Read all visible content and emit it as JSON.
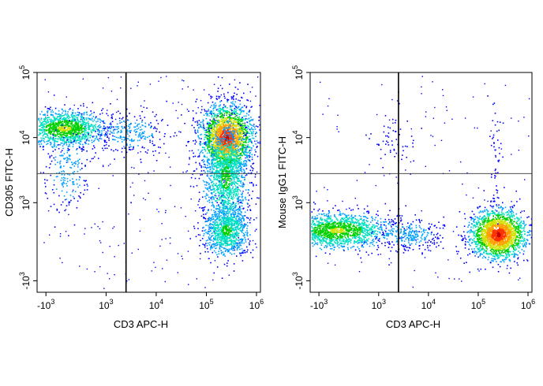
{
  "chart_data": [
    {
      "type": "scatter",
      "plot_style": "density pseudocolor flow cytometry dot plot",
      "xlabel": "CD3 APC-H",
      "ylabel": "CD305 FITC-H",
      "x_ticks": [
        {
          "base": "-10",
          "exp": "3",
          "value": -1000
        },
        {
          "base": "10",
          "exp": "3",
          "value": 1000
        },
        {
          "base": "10",
          "exp": "4",
          "value": 10000
        },
        {
          "base": "10",
          "exp": "5",
          "value": 100000
        },
        {
          "base": "10",
          "exp": "6",
          "value": 1000000
        }
      ],
      "y_ticks": [
        {
          "base": "-10",
          "exp": "3",
          "value": -1000
        },
        {
          "base": "10",
          "exp": "3",
          "value": 1000
        },
        {
          "base": "10",
          "exp": "4",
          "value": 10000
        },
        {
          "base": "10",
          "exp": "5",
          "value": 100000
        }
      ],
      "scale": "biexponential (logicle)",
      "gates": {
        "vertical_x": 2500,
        "horizontal_y": 2800
      },
      "populations": [
        {
          "x_center": -400,
          "y_center": 14000,
          "relative_density": "medium",
          "extent": "x from -1000 to 4000, y from 5000 to 25000"
        },
        {
          "x_center": 250000,
          "y_center": 10000,
          "relative_density": "high",
          "extent": "x from 60000 to 500000, y from 4000 to 20000"
        },
        {
          "x_center": 250000,
          "y_center": 300,
          "relative_density": "medium",
          "extent": "x from 80000 to 450000, y from -1000 to 4000"
        }
      ]
    },
    {
      "type": "scatter",
      "plot_style": "density pseudocolor flow cytometry dot plot",
      "xlabel": "CD3 APC-H",
      "ylabel": "Mouse IgG1 FITC-H",
      "x_ticks": [
        {
          "base": "-10",
          "exp": "3",
          "value": -1000
        },
        {
          "base": "10",
          "exp": "3",
          "value": 1000
        },
        {
          "base": "10",
          "exp": "4",
          "value": 10000
        },
        {
          "base": "10",
          "exp": "5",
          "value": 100000
        },
        {
          "base": "10",
          "exp": "6",
          "value": 1000000
        }
      ],
      "y_ticks": [
        {
          "base": "-10",
          "exp": "3",
          "value": -1000
        },
        {
          "base": "10",
          "exp": "3",
          "value": 1000
        },
        {
          "base": "10",
          "exp": "4",
          "value": 10000
        },
        {
          "base": "10",
          "exp": "5",
          "value": 100000
        }
      ],
      "scale": "biexponential (logicle)",
      "gates": {
        "vertical_x": 2500,
        "horizontal_y": 2800
      },
      "populations": [
        {
          "x_center": -400,
          "y_center": 300,
          "relative_density": "medium",
          "extent": "x from -1000 to 5000, y from -1000 to 2000"
        },
        {
          "x_center": 250000,
          "y_center": 200,
          "relative_density": "high",
          "extent": "x from 80000 to 450000, y from -800 to 2500"
        }
      ]
    }
  ],
  "colors": {
    "density_scale": [
      "#0000ff",
      "#00a0ff",
      "#00e0c0",
      "#00d000",
      "#d0e000",
      "#ffa000",
      "#ff3000",
      "#c00000"
    ],
    "axis": "#000000",
    "gate_line": "#000000"
  }
}
